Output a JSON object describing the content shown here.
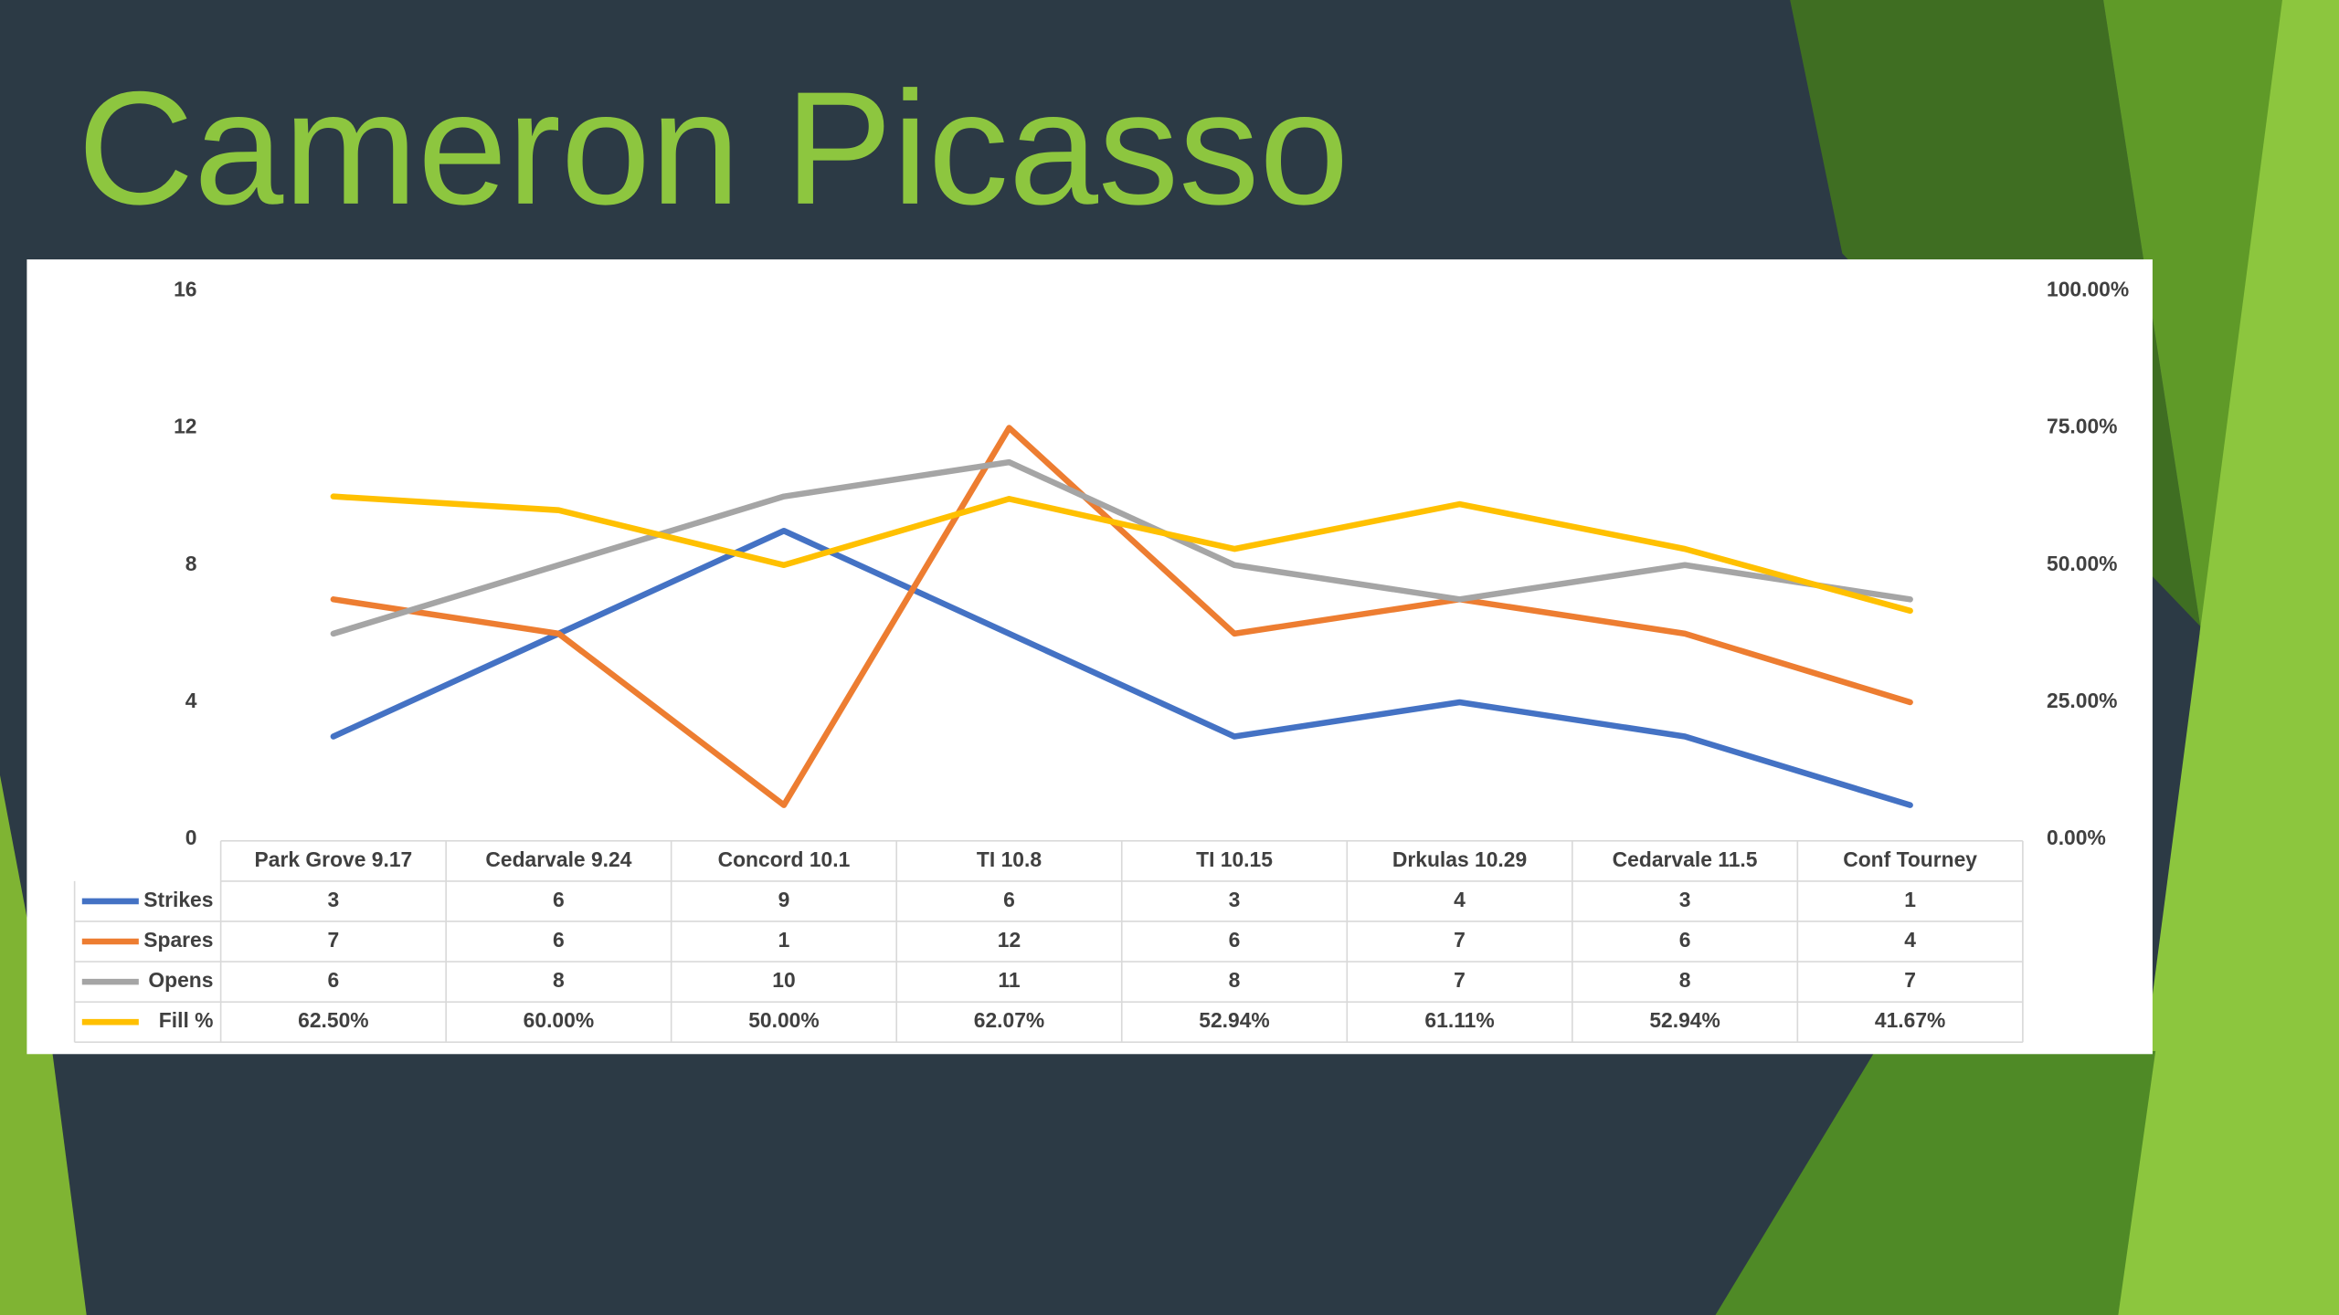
{
  "chart_data": {
    "type": "line",
    "title": "Cameron Picasso",
    "categories": [
      "Park Grove 9.17",
      "Cedarvale 9.24",
      "Concord 10.1",
      "TI 10.8",
      "TI 10.15",
      "Drkulas 10.29",
      "Cedarvale 11.5",
      "Conf Tourney"
    ],
    "series": [
      {
        "name": "Strikes",
        "color": "#4472c4",
        "values": [
          3,
          6,
          9,
          6,
          3,
          4,
          3,
          1
        ]
      },
      {
        "name": "Spares",
        "color": "#ed7d31",
        "values": [
          7,
          6,
          1,
          12,
          6,
          7,
          6,
          4
        ]
      },
      {
        "name": "Opens",
        "color": "#a5a5a5",
        "values": [
          6,
          8,
          10,
          11,
          8,
          7,
          8,
          7
        ]
      },
      {
        "name": "Fill %",
        "color": "#ffc000",
        "axis": "y2",
        "values": [
          62.5,
          60,
          50,
          62.07,
          52.94,
          61.11,
          52.94,
          41.67
        ],
        "value_labels": [
          "62.50%",
          "60.00%",
          "50.00%",
          "62.07%",
          "52.94%",
          "61.11%",
          "52.94%",
          "41.67%"
        ]
      }
    ],
    "ylim": [
      0,
      16
    ],
    "yticks": [
      0,
      4,
      8,
      12,
      16
    ],
    "y2lim": [
      0,
      100
    ],
    "y2ticks": [
      {
        "value": 0,
        "label": "0.00%"
      },
      {
        "value": 25,
        "label": "25.00%"
      },
      {
        "value": 50,
        "label": "50.00%"
      },
      {
        "value": 75,
        "label": "75.00%"
      },
      {
        "value": 100,
        "label": "100.00%"
      }
    ],
    "data_table": true
  }
}
